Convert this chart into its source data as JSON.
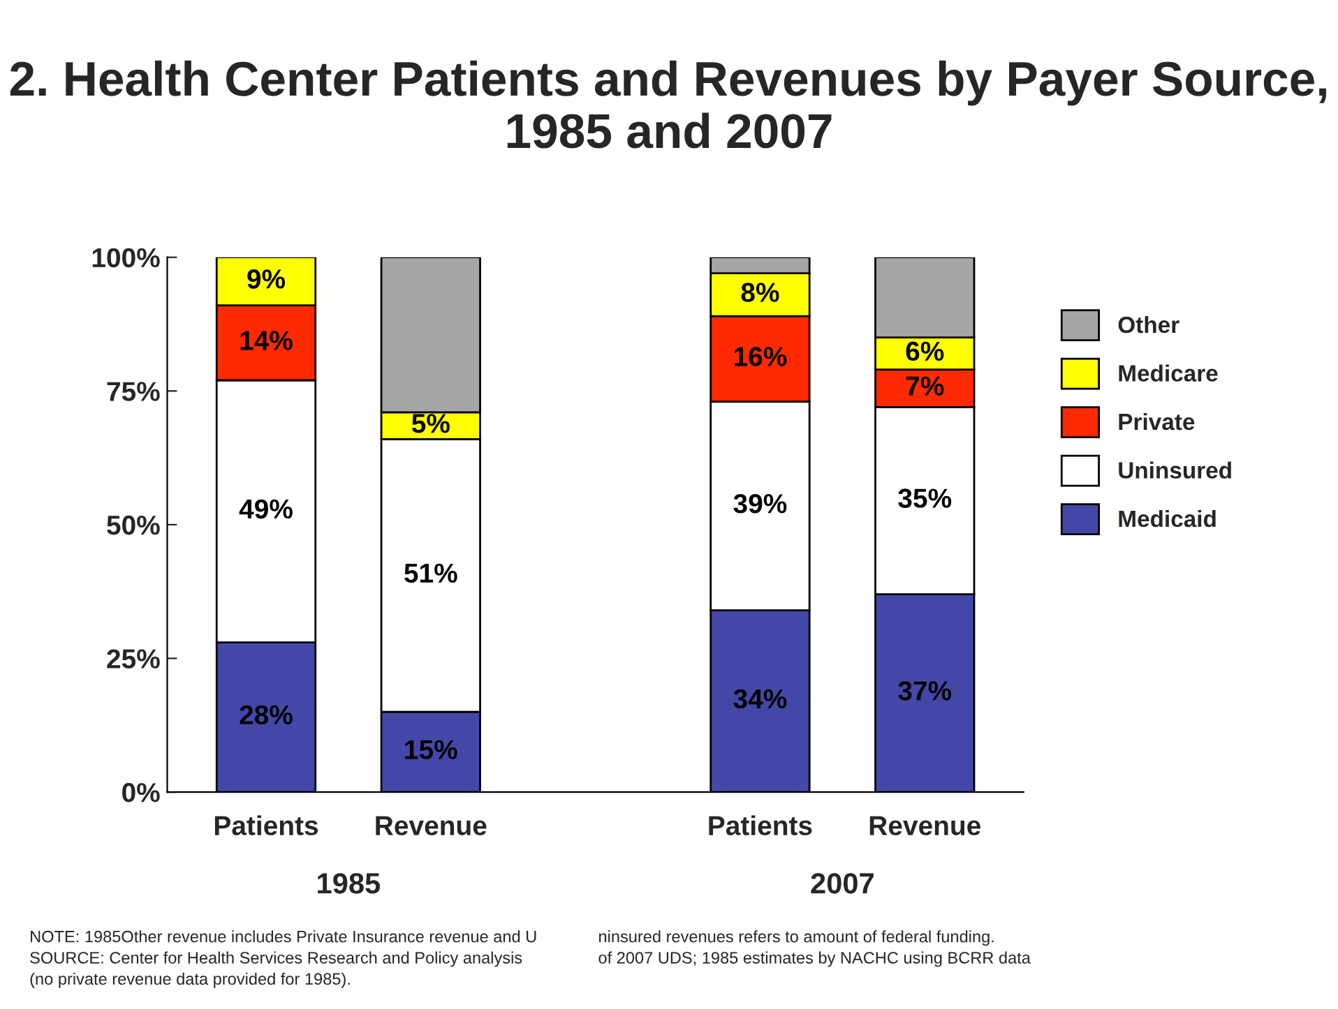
{
  "chart_data": {
    "type": "bar",
    "stacked": true,
    "title": "2. Health Center Patients and Revenues by Payer Source, 1985 and 2007",
    "categories": [
      "Patients",
      "Revenue",
      null,
      "Patients",
      "Revenue"
    ],
    "series": [
      {
        "name": "Medicaid",
        "color": "#4348a8",
        "values": [
          28,
          15,
          null,
          34,
          37
        ],
        "value_labels": [
          "28%",
          "15%",
          null,
          "34%",
          "37%"
        ]
      },
      {
        "name": "Uninsured",
        "color": "#ffffff",
        "values": [
          49,
          51,
          null,
          39,
          35
        ],
        "value_labels": [
          "49%",
          "51%",
          null,
          "39%",
          "35%"
        ]
      },
      {
        "name": "Private",
        "color": "#ff2a00",
        "values": [
          14,
          null,
          null,
          16,
          7
        ],
        "value_labels": [
          "14%",
          null,
          null,
          "16%",
          "7%"
        ]
      },
      {
        "name": "Medicare",
        "color": "#ffff00",
        "values": [
          9,
          5,
          null,
          8,
          6
        ],
        "value_labels": [
          "9%",
          "5%",
          null,
          "8%",
          "6%"
        ]
      },
      {
        "name": "Other",
        "color": "#a6a6a6",
        "values": [
          null,
          29,
          null,
          3,
          15
        ],
        "value_labels": [
          null,
          null,
          null,
          null,
          null
        ]
      }
    ],
    "ylim": [
      0,
      100
    ],
    "yticks": [
      {
        "value": 0,
        "label": "0%"
      },
      {
        "value": 25,
        "label": "25%"
      },
      {
        "value": 50,
        "label": "50%"
      },
      {
        "value": 75,
        "label": "75%"
      },
      {
        "value": 100,
        "label": "100%"
      }
    ],
    "grid": false,
    "legend": "right",
    "annotations": [
      "1985",
      "2007",
      "NOTE: 1985Other revenue includes Private Insurance revenue and U",
      "ninsured revenues refers to amount of federal funding.",
      "SOURCE: Center for Health Services Research and Policy analysis",
      "of 2007 UDS; 1985 estimates by NACHC using BCRR data",
      "(no private revenue data provided for 1985)."
    ]
  }
}
